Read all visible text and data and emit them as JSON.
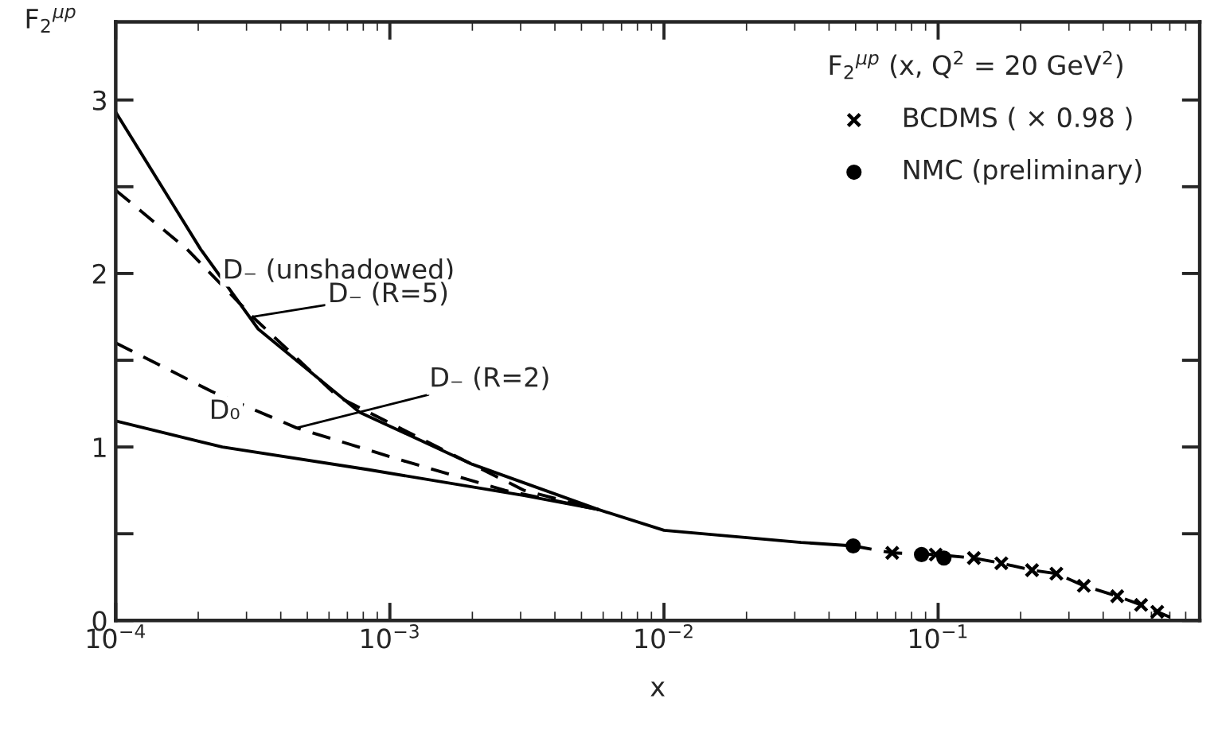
{
  "chart_data": {
    "type": "line",
    "ylabel": "F$_{2}$$^{μp}$",
    "xlabel": "x",
    "legend_title": "F$_{2}$$^{μp}$ (x, Q$^{2}$ = 20 GeV$^{2}$)",
    "log": "x",
    "xlim": [
      0.0001,
      0.9
    ],
    "ylim": [
      0,
      3.45
    ],
    "xticks": [
      {
        "value": 0.0001,
        "label": "10$^{−4}$"
      },
      {
        "value": 0.001,
        "label": "10$^{−3}$"
      },
      {
        "value": 0.01,
        "label": "10$^{−2}$"
      },
      {
        "value": 0.1,
        "label": "10$^{−1}$"
      }
    ],
    "yticks": [
      0,
      {
        "value": 0.5,
        "label": null
      },
      1,
      {
        "value": 1.5,
        "label": null
      },
      2,
      {
        "value": 2.5,
        "label": null
      },
      3
    ],
    "grid": false,
    "legend": "top right",
    "series": [
      {
        "color": "#000000",
        "line_style": "solid",
        "marker": "none",
        "x": [
          0.0001,
          0.000204,
          0.000331,
          0.000776,
          0.002,
          0.00575,
          0.01,
          0.0316,
          0.049
        ],
        "values": [
          2.93,
          2.14,
          1.68,
          1.2,
          0.9,
          0.64,
          0.52,
          0.45,
          0.43
        ]
      },
      {
        "color": "#000000",
        "line_style": "dashed",
        "marker": "none",
        "x": [
          0.0001,
          0.000182,
          0.000316,
          0.000646,
          0.00129,
          0.00309,
          0.00575
        ],
        "values": [
          2.48,
          2.14,
          1.75,
          1.29,
          1.05,
          0.75,
          0.64
        ]
      },
      {
        "color": "#000000",
        "line_style": "dashed",
        "marker": "none",
        "x": [
          0.0001,
          0.000224,
          0.000457,
          0.00107,
          0.00263,
          0.00575
        ],
        "values": [
          1.6,
          1.32,
          1.11,
          0.93,
          0.75,
          0.64
        ]
      },
      {
        "color": "#000000",
        "line_style": "solid",
        "marker": "none",
        "x": [
          0.0001,
          0.000245,
          0.000832,
          0.00309,
          0.00575
        ],
        "values": [
          1.15,
          1.0,
          0.87,
          0.72,
          0.64
        ]
      },
      {
        "color": "#000000",
        "line_style": "dashed",
        "marker": "none",
        "x": [
          0.049,
          0.068,
          0.098,
          0.135,
          0.17,
          0.22,
          0.27,
          0.34,
          0.45,
          0.55,
          0.63,
          0.7
        ],
        "values": [
          0.43,
          0.39,
          0.38,
          0.36,
          0.33,
          0.29,
          0.27,
          0.2,
          0.14,
          0.09,
          0.05,
          0.02
        ]
      },
      {
        "type": "scatter",
        "name": "BCDMS ( × 0.98 )",
        "color": "#000000",
        "marker": "cross",
        "x": [
          0.068,
          0.098,
          0.135,
          0.17,
          0.22,
          0.27,
          0.34,
          0.45,
          0.55,
          0.63
        ],
        "values": [
          0.39,
          0.38,
          0.36,
          0.33,
          0.29,
          0.27,
          0.2,
          0.14,
          0.09,
          0.05
        ]
      },
      {
        "type": "scatter",
        "name": "NMC (preliminary)",
        "color": "#000000",
        "marker": "circle",
        "x": [
          0.049,
          0.087,
          0.105
        ],
        "values": [
          0.43,
          0.38,
          0.36
        ]
      }
    ],
    "annotations": [
      {
        "text": "D₋ (unshadowed)",
        "x": 0.000204,
        "y": 2.14
      },
      {
        "text": "D₋ (R=5)",
        "x": 0.000316,
        "y": 1.75
      },
      {
        "text": "D₋ (R=2)",
        "x": 0.000457,
        "y": 1.11
      },
      {
        "text": "D₀",
        "x": 0.000245,
        "y": 1.0
      }
    ]
  }
}
